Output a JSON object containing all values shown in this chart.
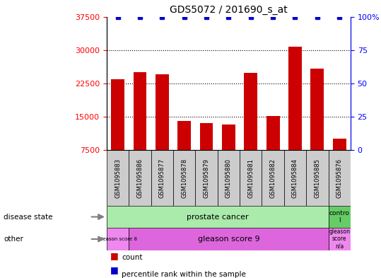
{
  "title": "GDS5072 / 201690_s_at",
  "samples": [
    "GSM1095883",
    "GSM1095886",
    "GSM1095877",
    "GSM1095878",
    "GSM1095879",
    "GSM1095880",
    "GSM1095881",
    "GSM1095882",
    "GSM1095884",
    "GSM1095885",
    "GSM1095876"
  ],
  "counts": [
    23500,
    25000,
    24500,
    14000,
    13500,
    13200,
    24800,
    15200,
    30700,
    25800,
    10000
  ],
  "percentile_ranks": [
    100,
    100,
    100,
    100,
    100,
    100,
    100,
    100,
    100,
    100,
    100
  ],
  "ylim_left": [
    7500,
    37500
  ],
  "ylim_right": [
    0,
    100
  ],
  "yticks_left": [
    7500,
    15000,
    22500,
    30000,
    37500
  ],
  "yticks_right": [
    0,
    25,
    50,
    75,
    100
  ],
  "bar_color": "#cc0000",
  "dot_color": "#0000cc",
  "legend_items": [
    "count",
    "percentile rank within the sample"
  ],
  "legend_colors": [
    "#cc0000",
    "#0000cc"
  ],
  "bar_width": 0.6,
  "sample_box_color": "#cccccc",
  "disease_state_prostate_color": "#aaeaaa",
  "disease_state_control_color": "#66cc66",
  "gleason8_color": "#ee88ee",
  "gleason9_color": "#dd66dd",
  "gleasonNA_color": "#ee88ee"
}
